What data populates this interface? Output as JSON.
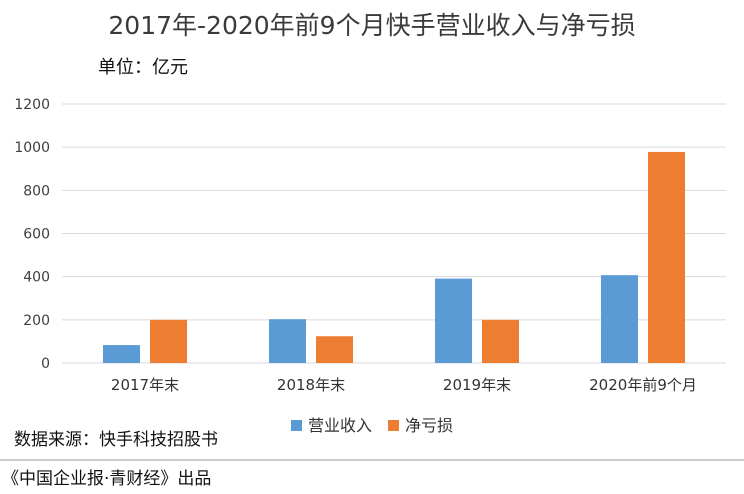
{
  "chart_data": {
    "type": "bar",
    "title": "2017年-2020年前9个月快手营业收入与净亏损",
    "unit": "单位：亿元",
    "categories": [
      "2017年末",
      "2018年末",
      "2019年末",
      "2020年前9个月"
    ],
    "series": [
      {
        "name": "营业收入",
        "color": "#5B9BD5",
        "values": [
          83,
          203,
          391,
          407
        ]
      },
      {
        "name": "净亏损",
        "color": "#ED7D31",
        "values": [
          200,
          124,
          200,
          978
        ]
      }
    ],
    "ylim": [
      0,
      1200
    ],
    "yticks": [
      0,
      200,
      400,
      600,
      800,
      1000,
      1200
    ],
    "grid": true,
    "legend_position": "bottom"
  },
  "footer": {
    "source": "数据来源：快手科技招股书",
    "credit": "《中国企业报·青财经》出品"
  }
}
